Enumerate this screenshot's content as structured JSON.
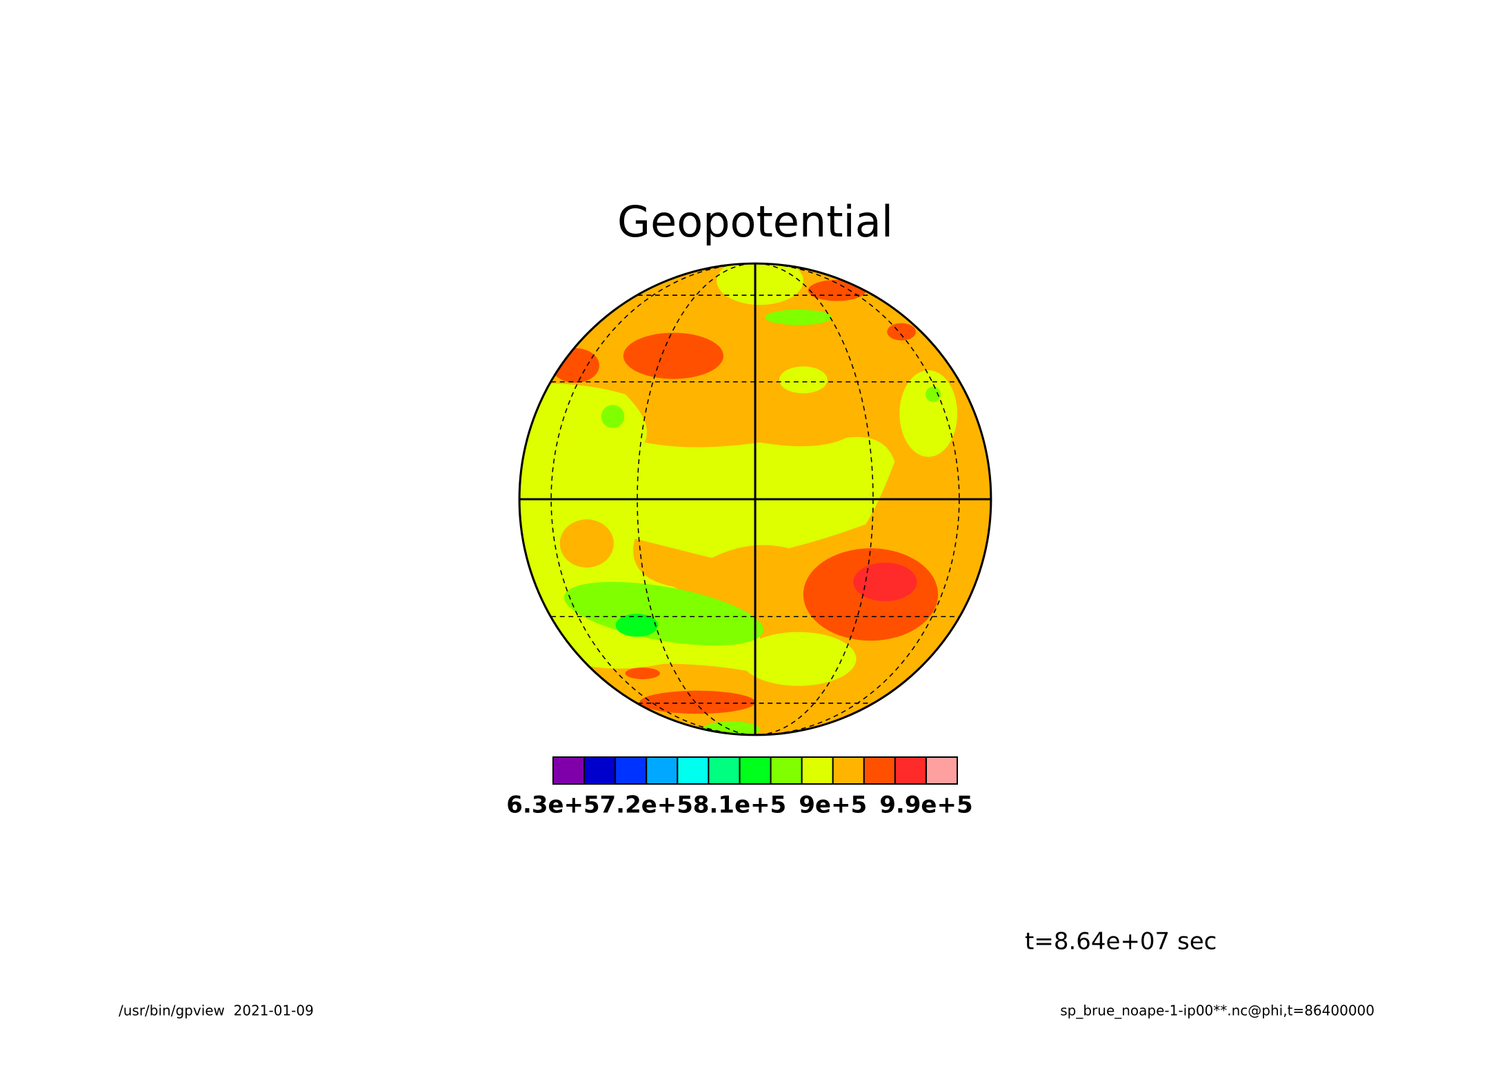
{
  "chart_data": {
    "type": "contour",
    "title": "Geopotential",
    "colorbar": {
      "colors": [
        "#7f00aa",
        "#0000cc",
        "#0033ff",
        "#00a8ff",
        "#00ffee",
        "#00ff80",
        "#00ff1a",
        "#80ff00",
        "#ddff00",
        "#ffb400",
        "#ff5000",
        "#ff2a2a",
        "#ffa0a0"
      ],
      "xlim": [
        630000,
        1020000
      ],
      "xticks": [
        {
          "value": 630000,
          "label": "6.3e+5"
        },
        {
          "value": 720000,
          "label": "7.2e+5"
        },
        {
          "value": 810000,
          "label": "8.1e+5"
        },
        {
          "value": 900000,
          "label": "9e+5"
        },
        {
          "value": 990000,
          "label": "9.9e+5"
        }
      ]
    },
    "time_label": "t=8.64e+07 sec",
    "footer_left": "/usr/bin/gpview  2021-01-09",
    "footer_right": "sp_brue_noape-1-ip00**.nc@phi,t=86400000"
  }
}
